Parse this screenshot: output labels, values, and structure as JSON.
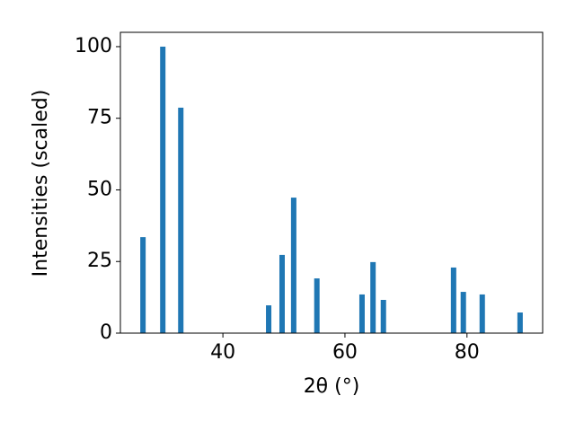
{
  "chart_data": {
    "type": "bar",
    "xlabel": "2θ (°)",
    "ylabel": "Intensities (scaled)",
    "x": [
      26.9,
      30.15,
      33.1,
      47.5,
      49.7,
      51.6,
      55.4,
      62.8,
      64.6,
      66.3,
      77.8,
      79.4,
      82.5,
      88.7
    ],
    "values": [
      33.5,
      100,
      78.7,
      9.7,
      27.3,
      47.3,
      19.1,
      13.5,
      24.8,
      11.6,
      22.9,
      14.4,
      13.5,
      7.2
    ],
    "color": "#1f77b4",
    "xlim": [
      23.2,
      92.4
    ],
    "xticks": [
      40,
      60,
      80
    ],
    "ylim": [
      0,
      105
    ],
    "yticks": [
      0,
      25,
      50,
      75,
      100
    ]
  }
}
